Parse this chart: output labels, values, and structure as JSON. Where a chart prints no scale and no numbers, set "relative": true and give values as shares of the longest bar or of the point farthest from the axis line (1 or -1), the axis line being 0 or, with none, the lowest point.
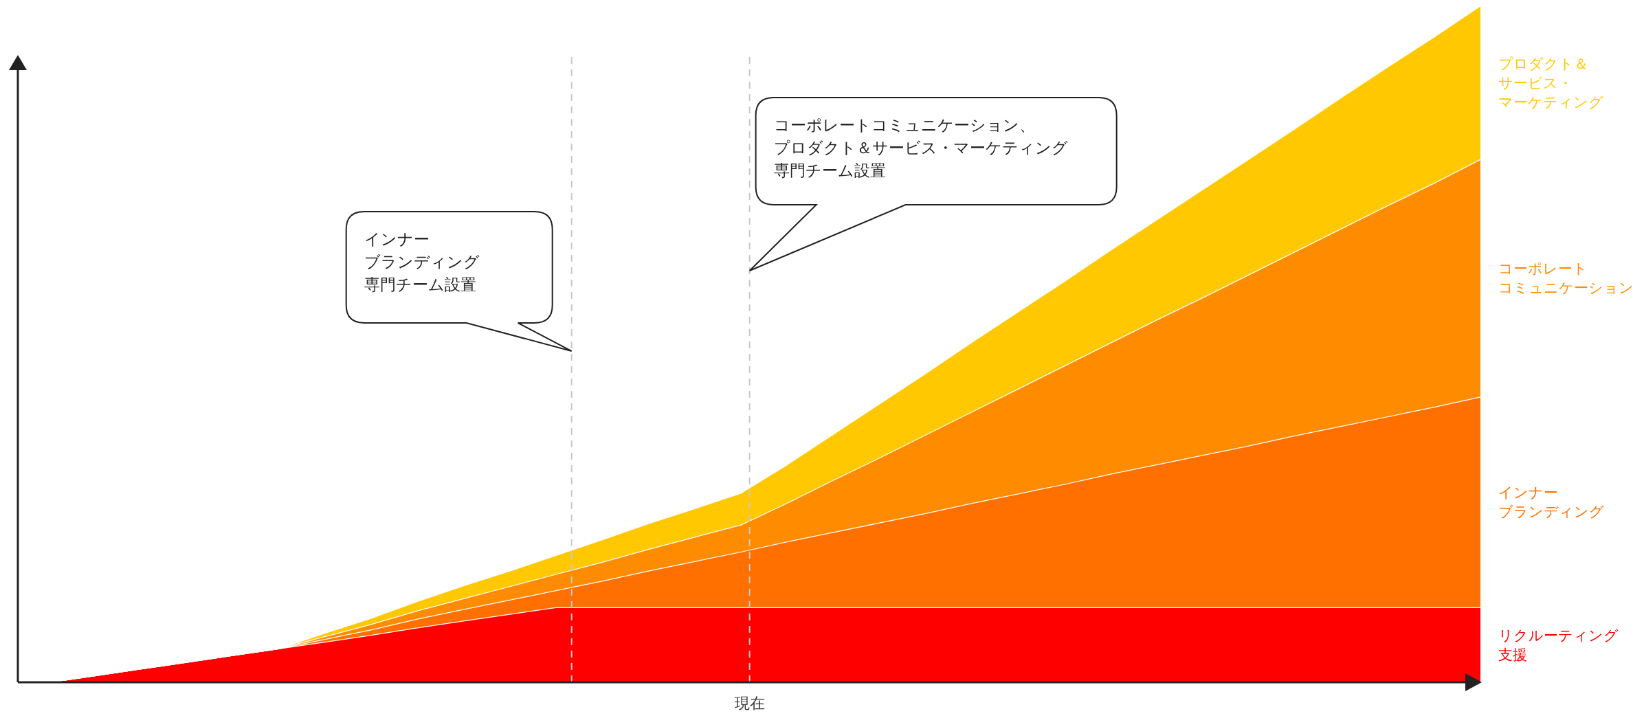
{
  "chart_data": {
    "type": "area",
    "stacked": true,
    "relative": true,
    "categories": [
      null,
      null,
      null,
      null,
      null,
      null,
      null,
      null,
      null,
      null,
      null,
      null,
      null,
      null,
      null,
      null,
      null,
      null,
      null,
      null,
      null,
      null,
      null,
      null,
      null,
      null,
      null,
      null,
      null,
      null,
      null,
      null
    ],
    "series": [
      {
        "name": "リクルーティング支援",
        "color": "#ff0000",
        "values": [
          0,
          0.01,
          0.02,
          0.03,
          0.04,
          0.05,
          0.06,
          0.07,
          0.081,
          0.091,
          0.101,
          0.111,
          0.111,
          0.111,
          0.111,
          0.111,
          0.111,
          0.111,
          0.111,
          0.111,
          0.111,
          0.111,
          0.111,
          0.111,
          0.111,
          0.111,
          0.111,
          0.111,
          0.111,
          0.111,
          0.111,
          0.111
        ]
      },
      {
        "name": "インナーブランディング",
        "color": "#ff7000",
        "values": [
          0,
          0,
          0,
          0,
          0,
          0,
          0.004,
          0.008,
          0.013,
          0.017,
          0.021,
          0.025,
          0.039,
          0.054,
          0.068,
          0.082,
          0.097,
          0.111,
          0.125,
          0.139,
          0.154,
          0.168,
          0.182,
          0.197,
          0.211,
          0.225,
          0.239,
          0.254,
          0.268,
          0.282,
          0.296,
          0.311
        ]
      },
      {
        "name": "コーポレートコミュニケーション",
        "color": "#ff8c00",
        "values": [
          0,
          0,
          0,
          0,
          0,
          0,
          0.004,
          0.008,
          0.012,
          0.016,
          0.02,
          0.024,
          0.028,
          0.032,
          0.036,
          0.04,
          0.057,
          0.077,
          0.096,
          0.116,
          0.135,
          0.155,
          0.175,
          0.194,
          0.214,
          0.233,
          0.253,
          0.272,
          0.292,
          0.312,
          0.331,
          0.351
        ]
      },
      {
        "name": "プロダクト＆サービス・マーケティング",
        "color": "#ffc800",
        "values": [
          0,
          0,
          0,
          0,
          0,
          0,
          0.005,
          0.009,
          0.014,
          0.019,
          0.023,
          0.028,
          0.033,
          0.038,
          0.042,
          0.047,
          0.057,
          0.068,
          0.08,
          0.091,
          0.103,
          0.114,
          0.125,
          0.137,
          0.148,
          0.16,
          0.171,
          0.182,
          0.194,
          0.205,
          0.216,
          0.227
        ]
      }
    ],
    "annotations": [
      "インナーブランディング専門チーム設置",
      "コーポレートコミュニケーション、プロダクト＆サービス・マーケティング専門チーム設置",
      "現在"
    ]
  }
}
